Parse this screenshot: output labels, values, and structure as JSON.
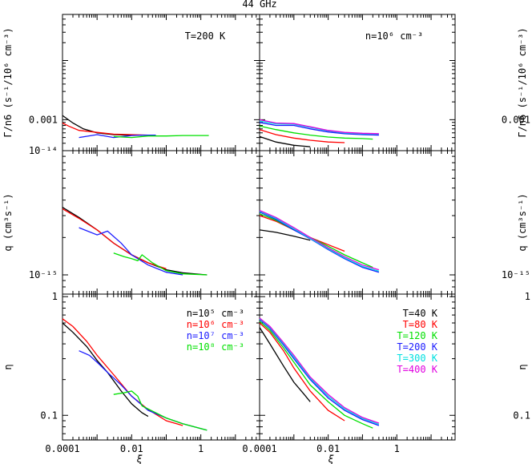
{
  "figure_title": "44 GHz",
  "colors": {
    "black": "#000000",
    "red": "#ff0000",
    "blue": "#1a1aff",
    "green": "#00e000",
    "cyan": "#00e0e0",
    "magenta": "#e000e0"
  },
  "chart_data": [
    {
      "type": "line",
      "id": "rate-left",
      "annotation": "T=200 K",
      "ylabel": "Γ/n6 (s⁻¹/10⁶ cm⁻³)",
      "xlabel": "",
      "x_scale": "log",
      "xlim": [
        0.0001,
        50
      ],
      "y_scale": "log",
      "ylim": [
        0.0003,
        0.06
      ],
      "yticks": [
        {
          "value": 0.001,
          "label": "0.001"
        }
      ],
      "series": [
        {
          "color": "#000000",
          "x": [
            0.0001,
            0.0002,
            0.0004,
            0.001,
            0.003,
            0.008,
            0.02
          ],
          "y": [
            0.00118,
            0.00088,
            0.0007,
            0.0006,
            0.00056,
            0.00055,
            0.00055
          ]
        },
        {
          "color": "#ff0000",
          "x": [
            0.0001,
            0.00015,
            0.0003,
            0.001,
            0.003,
            0.01,
            0.03
          ],
          "y": [
            0.00088,
            0.00078,
            0.00066,
            0.00061,
            0.00057,
            0.00056,
            0.00055
          ]
        },
        {
          "color": "#1a1aff",
          "x": [
            0.0003,
            0.001,
            0.003,
            0.01,
            0.02,
            0.05
          ],
          "y": [
            0.0005,
            0.00056,
            0.0005,
            0.00054,
            0.00055,
            0.00055
          ]
        },
        {
          "color": "#00e000",
          "x": [
            0.003,
            0.01,
            0.03,
            0.1,
            0.3,
            1,
            1.7
          ],
          "y": [
            0.00052,
            0.0005,
            0.00053,
            0.00053,
            0.00054,
            0.00054,
            0.00054
          ]
        }
      ]
    },
    {
      "type": "line",
      "id": "rate-right",
      "annotation": "n=10⁶ cm⁻³",
      "ylabel": "Γ/n6 (s⁻¹/10⁶ cm⁻³)",
      "xlabel": "",
      "x_scale": "log",
      "xlim": [
        0.0001,
        50
      ],
      "y_scale": "log",
      "ylim": [
        0.0003,
        0.06
      ],
      "yticks": [
        {
          "value": 0.001,
          "label": "0.001"
        }
      ],
      "series": [
        {
          "color": "#000000",
          "x": [
            0.0001,
            0.0003,
            0.001,
            0.003
          ],
          "y": [
            0.00052,
            0.00042,
            0.00037,
            0.00035
          ]
        },
        {
          "color": "#ff0000",
          "x": [
            0.0001,
            0.0003,
            0.001,
            0.003,
            0.01,
            0.03
          ],
          "y": [
            0.00068,
            0.00056,
            0.00049,
            0.00045,
            0.00042,
            0.00041
          ]
        },
        {
          "color": "#00e000",
          "x": [
            0.0001,
            0.0003,
            0.001,
            0.003,
            0.01,
            0.03,
            0.1,
            0.2
          ],
          "y": [
            0.00078,
            0.00068,
            0.0006,
            0.00055,
            0.00051,
            0.00049,
            0.00048,
            0.00047
          ]
        },
        {
          "color": "#1a1aff",
          "x": [
            0.0001,
            0.0003,
            0.001,
            0.003,
            0.01,
            0.03,
            0.1,
            0.3
          ],
          "y": [
            0.0009,
            0.0008,
            0.0008,
            0.0007,
            0.00062,
            0.00058,
            0.00056,
            0.00055
          ]
        },
        {
          "color": "#00e0e0",
          "x": [
            0.0001,
            0.0003,
            0.001,
            0.003,
            0.01,
            0.03,
            0.1,
            0.3
          ],
          "y": [
            0.00095,
            0.00085,
            0.00084,
            0.00074,
            0.00065,
            0.0006,
            0.00058,
            0.00057
          ]
        },
        {
          "color": "#e000e0",
          "x": [
            0.0001,
            0.0003,
            0.001,
            0.003,
            0.01,
            0.03,
            0.1,
            0.3
          ],
          "y": [
            0.001,
            0.00088,
            0.00086,
            0.00076,
            0.00066,
            0.00061,
            0.00059,
            0.00058
          ]
        }
      ]
    },
    {
      "type": "line",
      "id": "q-left",
      "annotation": "",
      "ylabel": "q (cm³s⁻¹)",
      "xlabel": "",
      "x_scale": "log",
      "xlim": [
        0.0001,
        50
      ],
      "y_scale": "log",
      "ylim": [
        7e-16,
        1e-14
      ],
      "yticks": [
        {
          "value": 1e-15,
          "label": "10⁻¹⁵"
        },
        {
          "value": 1e-14,
          "label": "10⁻¹⁴"
        }
      ],
      "series": [
        {
          "color": "#000000",
          "x": [
            0.0001,
            0.0003,
            0.001,
            0.003,
            0.01,
            0.03,
            0.1,
            0.3,
            1.5
          ],
          "y": [
            3.5e-15,
            2.9e-15,
            2.3e-15,
            1.8e-15,
            1.45e-15,
            1.25e-15,
            1.1e-15,
            1.04e-15,
            1e-15
          ]
        },
        {
          "color": "#ff0000",
          "x": [
            0.0001,
            0.0003,
            0.001,
            0.003,
            0.01,
            0.03,
            0.1
          ],
          "y": [
            3.4e-15,
            2.85e-15,
            2.3e-15,
            1.8e-15,
            1.45e-15,
            1.25e-15,
            1.12e-15
          ]
        },
        {
          "color": "#1a1aff",
          "x": [
            0.0003,
            0.001,
            0.002,
            0.005,
            0.01,
            0.03,
            0.1,
            0.3
          ],
          "y": [
            2.4e-15,
            2.1e-15,
            2.25e-15,
            1.8e-15,
            1.45e-15,
            1.2e-15,
            1.05e-15,
            1e-15
          ]
        },
        {
          "color": "#00e000",
          "x": [
            0.003,
            0.006,
            0.01,
            0.015,
            0.02,
            0.04,
            0.1,
            0.3,
            1.5
          ],
          "y": [
            1.5e-15,
            1.4e-15,
            1.35e-15,
            1.3e-15,
            1.45e-15,
            1.25e-15,
            1.08e-15,
            1.02e-15,
            1e-15
          ]
        }
      ]
    },
    {
      "type": "line",
      "id": "q-right",
      "annotation": "",
      "ylabel": "q (cm³s⁻¹)",
      "xlabel": "",
      "x_scale": "log",
      "xlim": [
        0.0001,
        50
      ],
      "y_scale": "log",
      "ylim": [
        7e-16,
        1e-14
      ],
      "yticks": [
        {
          "value": 1e-15,
          "label": "10⁻¹⁵"
        }
      ],
      "series": [
        {
          "color": "#000000",
          "x": [
            0.0001,
            0.0003,
            0.001,
            0.003
          ],
          "y": [
            2.3e-15,
            2.2e-15,
            2.05e-15,
            1.9e-15
          ]
        },
        {
          "color": "#ff0000",
          "x": [
            0.0001,
            0.0003,
            0.001,
            0.003,
            0.01,
            0.03
          ],
          "y": [
            3e-15,
            2.7e-15,
            2.3e-15,
            2e-15,
            1.75e-15,
            1.55e-15
          ]
        },
        {
          "color": "#00e000",
          "x": [
            0.0001,
            0.0003,
            0.001,
            0.003,
            0.01,
            0.03,
            0.1,
            0.2
          ],
          "y": [
            3.1e-15,
            2.75e-15,
            2.3e-15,
            2e-15,
            1.7e-15,
            1.45e-15,
            1.25e-15,
            1.15e-15
          ]
        },
        {
          "color": "#1a1aff",
          "x": [
            0.0001,
            0.0003,
            0.001,
            0.003,
            0.01,
            0.03,
            0.1,
            0.3
          ],
          "y": [
            3.2e-15,
            2.8e-15,
            2.3e-15,
            1.95e-15,
            1.6e-15,
            1.35e-15,
            1.15e-15,
            1.05e-15
          ]
        },
        {
          "color": "#00e0e0",
          "x": [
            0.0001,
            0.0003,
            0.001,
            0.003,
            0.01,
            0.03,
            0.1,
            0.3
          ],
          "y": [
            3.25e-15,
            2.85e-15,
            2.35e-15,
            1.97e-15,
            1.62e-15,
            1.37e-15,
            1.17e-15,
            1.07e-15
          ]
        },
        {
          "color": "#e000e0",
          "x": [
            0.0001,
            0.0003,
            0.001,
            0.003,
            0.01,
            0.03,
            0.1,
            0.3
          ],
          "y": [
            3.3e-15,
            2.9e-15,
            2.4e-15,
            2e-15,
            1.65e-15,
            1.4e-15,
            1.2e-15,
            1.1e-15
          ]
        }
      ]
    },
    {
      "type": "line",
      "id": "eta-left",
      "annotation": "",
      "ylabel": "η",
      "xlabel": "ξ",
      "x_scale": "log",
      "xlim": [
        0.0001,
        50
      ],
      "y_scale": "log",
      "ylim": [
        0.062,
        1.05
      ],
      "yticks": [
        {
          "value": 1,
          "label": "1"
        },
        {
          "value": 0.1,
          "label": "0.1"
        }
      ],
      "xticks": [
        {
          "value": 0.0001,
          "label": "0.0001"
        },
        {
          "value": 0.01,
          "label": "0.01"
        },
        {
          "value": 1,
          "label": "1"
        }
      ],
      "legend": [
        {
          "text": "n=10⁵ cm⁻³",
          "color": "#000000"
        },
        {
          "text": "n=10⁶ cm⁻³",
          "color": "#ff0000"
        },
        {
          "text": "n=10⁷ cm⁻³",
          "color": "#1a1aff"
        },
        {
          "text": "n=10⁸ cm⁻³",
          "color": "#00e000"
        }
      ],
      "series": [
        {
          "color": "#000000",
          "x": [
            0.0001,
            0.0002,
            0.0005,
            0.001,
            0.002,
            0.005,
            0.01,
            0.02,
            0.03
          ],
          "y": [
            0.6,
            0.5,
            0.38,
            0.29,
            0.23,
            0.16,
            0.125,
            0.105,
            0.098
          ]
        },
        {
          "color": "#ff0000",
          "x": [
            0.0001,
            0.0002,
            0.0005,
            0.001,
            0.003,
            0.01,
            0.03,
            0.1,
            0.3
          ],
          "y": [
            0.65,
            0.56,
            0.42,
            0.32,
            0.22,
            0.145,
            0.112,
            0.09,
            0.082
          ]
        },
        {
          "color": "#1a1aff",
          "x": [
            0.0003,
            0.0006,
            0.001,
            0.002,
            0.005,
            0.01,
            0.03,
            0.1,
            0.3,
            1.5
          ],
          "y": [
            0.35,
            0.32,
            0.28,
            0.23,
            0.18,
            0.145,
            0.11,
            0.095,
            0.085,
            0.075
          ]
        },
        {
          "color": "#00e000",
          "x": [
            0.003,
            0.006,
            0.01,
            0.015,
            0.02,
            0.05,
            0.1,
            0.3,
            1.5
          ],
          "y": [
            0.15,
            0.155,
            0.16,
            0.145,
            0.12,
            0.105,
            0.095,
            0.085,
            0.075
          ]
        }
      ]
    },
    {
      "type": "line",
      "id": "eta-right",
      "annotation": "",
      "ylabel": "η",
      "xlabel": "ξ",
      "x_scale": "log",
      "xlim": [
        0.0001,
        50
      ],
      "y_scale": "log",
      "ylim": [
        0.062,
        1.05
      ],
      "yticks": [
        {
          "value": 1,
          "label": "1"
        },
        {
          "value": 0.1,
          "label": "0.1"
        }
      ],
      "xticks": [
        {
          "value": 0.0001,
          "label": "0.0001"
        },
        {
          "value": 0.01,
          "label": "0.01"
        },
        {
          "value": 1,
          "label": "1"
        }
      ],
      "legend": [
        {
          "text": "T=40 K",
          "color": "#000000"
        },
        {
          "text": "T=80 K",
          "color": "#ff0000"
        },
        {
          "text": "T=120 K",
          "color": "#00e000"
        },
        {
          "text": "T=200 K",
          "color": "#1a1aff"
        },
        {
          "text": "T=300 K",
          "color": "#00e0e0"
        },
        {
          "text": "T=400 K",
          "color": "#e000e0"
        }
      ],
      "series": [
        {
          "color": "#000000",
          "x": [
            0.0001,
            0.0002,
            0.0005,
            0.001,
            0.002,
            0.003
          ],
          "y": [
            0.55,
            0.4,
            0.26,
            0.19,
            0.15,
            0.13
          ]
        },
        {
          "color": "#ff0000",
          "x": [
            0.0001,
            0.0002,
            0.0005,
            0.001,
            0.003,
            0.01,
            0.03
          ],
          "y": [
            0.6,
            0.5,
            0.35,
            0.25,
            0.16,
            0.11,
            0.09
          ]
        },
        {
          "color": "#00e000",
          "x": [
            0.0001,
            0.0002,
            0.0005,
            0.001,
            0.003,
            0.01,
            0.03,
            0.1,
            0.2
          ],
          "y": [
            0.62,
            0.52,
            0.37,
            0.28,
            0.18,
            0.13,
            0.1,
            0.085,
            0.078
          ]
        },
        {
          "color": "#1a1aff",
          "x": [
            0.0001,
            0.0002,
            0.0005,
            0.001,
            0.003,
            0.01,
            0.03,
            0.1,
            0.3
          ],
          "y": [
            0.64,
            0.54,
            0.39,
            0.3,
            0.2,
            0.14,
            0.11,
            0.092,
            0.082
          ]
        },
        {
          "color": "#00e0e0",
          "x": [
            0.0001,
            0.0002,
            0.0005,
            0.001,
            0.003,
            0.01,
            0.03,
            0.1,
            0.3
          ],
          "y": [
            0.65,
            0.55,
            0.4,
            0.31,
            0.205,
            0.145,
            0.113,
            0.094,
            0.084
          ]
        },
        {
          "color": "#e000e0",
          "x": [
            0.0001,
            0.0002,
            0.0005,
            0.001,
            0.003,
            0.01,
            0.03,
            0.1,
            0.3
          ],
          "y": [
            0.66,
            0.56,
            0.41,
            0.32,
            0.21,
            0.15,
            0.116,
            0.096,
            0.086
          ]
        }
      ]
    }
  ]
}
